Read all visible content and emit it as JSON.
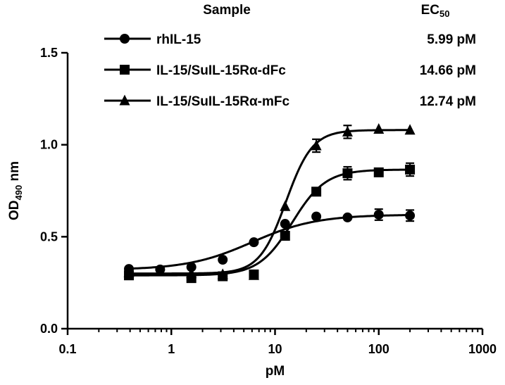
{
  "chart_data": {
    "type": "line",
    "title": "",
    "xlabel": "pM",
    "ylabel": {
      "main": "OD",
      "sub": "490",
      "suffix": " nm"
    },
    "x_scale": "log",
    "xlim": [
      0.1,
      1000
    ],
    "ylim": [
      0.0,
      1.5
    ],
    "x_ticks": [
      {
        "value": 0.1,
        "label": "0.1"
      },
      {
        "value": 1,
        "label": "1"
      },
      {
        "value": 10,
        "label": "10"
      },
      {
        "value": 100,
        "label": "100"
      },
      {
        "value": 1000,
        "label": "1000"
      }
    ],
    "y_ticks": [
      {
        "value": 0.0,
        "label": "0.0"
      },
      {
        "value": 0.5,
        "label": "0.5"
      },
      {
        "value": 1.0,
        "label": "1.0"
      },
      {
        "value": 1.5,
        "label": "1.5"
      }
    ],
    "grid": false,
    "legend": {
      "placement": "top",
      "header_sample": "Sample",
      "header_ec": {
        "main": "EC",
        "sub": "50"
      }
    },
    "series": [
      {
        "name": "rhIL-15",
        "ec50": "5.99 pM",
        "marker": "circle",
        "fit": {
          "bottom": 0.32,
          "top": 0.62,
          "ec50": 5.99,
          "hill": 1.4
        },
        "points": [
          {
            "x": 0.39,
            "y": 0.325,
            "err": 0.0
          },
          {
            "x": 0.78,
            "y": 0.322,
            "err": 0.0
          },
          {
            "x": 1.56,
            "y": 0.335,
            "err": 0.0
          },
          {
            "x": 3.13,
            "y": 0.375,
            "err": 0.0
          },
          {
            "x": 6.25,
            "y": 0.47,
            "err": 0.0
          },
          {
            "x": 12.5,
            "y": 0.57,
            "err": 0.0
          },
          {
            "x": 25,
            "y": 0.61,
            "err": 0.0
          },
          {
            "x": 50,
            "y": 0.605,
            "err": 0.0
          },
          {
            "x": 100,
            "y": 0.62,
            "err": 0.03
          },
          {
            "x": 200,
            "y": 0.615,
            "err": 0.03
          }
        ]
      },
      {
        "name": "IL-15/SuIL-15Rα-dFc",
        "ec50": "14.66 pM",
        "marker": "square",
        "fit": {
          "bottom": 0.29,
          "top": 0.865,
          "ec50": 14.66,
          "hill": 2.7
        },
        "points": [
          {
            "x": 0.39,
            "y": 0.29,
            "err": 0.0
          },
          {
            "x": 1.56,
            "y": 0.275,
            "err": 0.0
          },
          {
            "x": 3.13,
            "y": 0.285,
            "err": 0.0
          },
          {
            "x": 6.25,
            "y": 0.295,
            "err": 0.0
          },
          {
            "x": 12.5,
            "y": 0.505,
            "err": 0.02
          },
          {
            "x": 25,
            "y": 0.745,
            "err": 0.0
          },
          {
            "x": 50,
            "y": 0.845,
            "err": 0.035
          },
          {
            "x": 100,
            "y": 0.85,
            "err": 0.0
          },
          {
            "x": 200,
            "y": 0.865,
            "err": 0.035
          }
        ]
      },
      {
        "name": "IL-15/SuIL-15Rα-mFc",
        "ec50": "12.74 pM",
        "marker": "triangle",
        "fit": {
          "bottom": 0.3,
          "top": 1.08,
          "ec50": 12.74,
          "hill": 3.4
        },
        "points": [
          {
            "x": 0.39,
            "y": 0.305,
            "err": 0.0
          },
          {
            "x": 0.78,
            "y": 0.31,
            "err": 0.0
          },
          {
            "x": 1.56,
            "y": 0.3,
            "err": 0.0
          },
          {
            "x": 3.13,
            "y": 0.295,
            "err": 0.0
          },
          {
            "x": 6.25,
            "y": 0.29,
            "err": 0.0
          },
          {
            "x": 12.5,
            "y": 0.665,
            "err": 0.0
          },
          {
            "x": 25,
            "y": 0.995,
            "err": 0.035
          },
          {
            "x": 50,
            "y": 1.07,
            "err": 0.035
          },
          {
            "x": 100,
            "y": 1.085,
            "err": 0.0
          },
          {
            "x": 200,
            "y": 1.08,
            "err": 0.0
          }
        ]
      }
    ]
  }
}
